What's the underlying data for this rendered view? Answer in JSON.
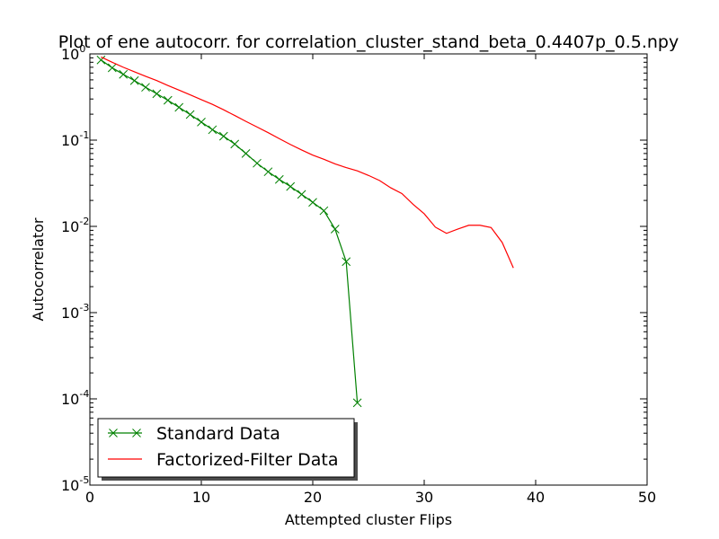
{
  "chart_data": {
    "type": "line",
    "title": "Plot of ene autocorr. for correlation_cluster_stand_beta_0.4407p_0.5.npy",
    "xlabel": "Attempted cluster Flips",
    "ylabel": "Autocorrelator",
    "xlim": [
      0,
      50
    ],
    "ylim": [
      1e-05,
      1
    ],
    "yscale": "log",
    "grid": false,
    "legend_position": "lower-left",
    "x_ticks": [
      "0",
      "10",
      "20",
      "30",
      "40",
      "50"
    ],
    "y_ticks": [
      {
        "base": "10",
        "exp": "0"
      },
      {
        "base": "10",
        "exp": "-1"
      },
      {
        "base": "10",
        "exp": "-2"
      },
      {
        "base": "10",
        "exp": "-3"
      },
      {
        "base": "10",
        "exp": "-4"
      },
      {
        "base": "10",
        "exp": "-5"
      }
    ],
    "series": [
      {
        "name": "Standard Data",
        "color": "#008000",
        "marker": "x",
        "x": [
          1,
          2,
          3,
          4,
          5,
          6,
          7,
          8,
          9,
          10,
          11,
          12,
          13,
          14,
          15,
          16,
          17,
          18,
          19,
          20,
          21,
          22,
          23,
          24
        ],
        "y": [
          0.85,
          0.69,
          0.58,
          0.49,
          0.41,
          0.345,
          0.29,
          0.24,
          0.198,
          0.162,
          0.132,
          0.111,
          0.09,
          0.07,
          0.054,
          0.043,
          0.035,
          0.029,
          0.0235,
          0.019,
          0.0152,
          0.0093,
          0.0039,
          9e-05
        ]
      },
      {
        "name": "Factorized-Filter Data",
        "color": "#ff0000",
        "marker": "none",
        "x": [
          1,
          2,
          3,
          4,
          5,
          6,
          7,
          8,
          9,
          10,
          11,
          12,
          13,
          14,
          15,
          16,
          17,
          18,
          19,
          20,
          21,
          22,
          23,
          24,
          25,
          26,
          27,
          28,
          29,
          30,
          31,
          32,
          33,
          34,
          35,
          36,
          37,
          38
        ],
        "y": [
          0.92,
          0.8,
          0.7,
          0.62,
          0.55,
          0.49,
          0.43,
          0.38,
          0.335,
          0.295,
          0.26,
          0.225,
          0.193,
          0.165,
          0.142,
          0.122,
          0.104,
          0.089,
          0.077,
          0.067,
          0.06,
          0.053,
          0.048,
          0.044,
          0.039,
          0.034,
          0.028,
          0.024,
          0.018,
          0.014,
          0.0098,
          0.0083,
          0.0093,
          0.0103,
          0.0103,
          0.0097,
          0.0065,
          0.0033
        ]
      }
    ]
  }
}
